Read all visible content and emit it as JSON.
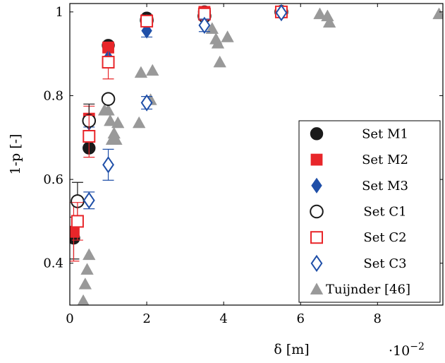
{
  "chart_data": {
    "type": "scatter",
    "xlabel": "δ [m]",
    "ylabel": "1-p [-]",
    "x_exponent_label": "·10",
    "x_exponent_power": "−2",
    "xlim": [
      0,
      9.7
    ],
    "ylim": [
      0.3,
      1.02
    ],
    "x_ticks": [
      0,
      2,
      4,
      6,
      8
    ],
    "x_tick_labels": [
      "0",
      "2",
      "4",
      "6",
      "8"
    ],
    "y_ticks": [
      0.4,
      0.6,
      0.8,
      1.0
    ],
    "y_tick_labels": [
      "0.4",
      "0.6",
      "0.8",
      "1"
    ],
    "grid": false,
    "legend_position": "bottom-right",
    "series": [
      {
        "name": "Set M1",
        "marker": "circle",
        "filled": true,
        "color": "#1a1a1a",
        "points": [
          {
            "x": 0.1,
            "y": 0.46,
            "err": 0.05
          },
          {
            "x": 0.5,
            "y": 0.675,
            "err": 0
          },
          {
            "x": 1.0,
            "y": 0.92,
            "err": 0
          },
          {
            "x": 2.0,
            "y": 0.985,
            "err": 0
          },
          {
            "x": 3.5,
            "y": 1.0,
            "err": 0
          },
          {
            "x": 5.5,
            "y": 1.0,
            "err": 0
          }
        ]
      },
      {
        "name": "Set M2",
        "marker": "square",
        "filled": true,
        "color": "#e8262a",
        "points": [
          {
            "x": 0.1,
            "y": 0.475,
            "err": 0.07
          },
          {
            "x": 0.5,
            "y": 0.745,
            "err": 0.03
          },
          {
            "x": 1.0,
            "y": 0.915,
            "err": 0
          },
          {
            "x": 2.0,
            "y": 0.98,
            "err": 0
          },
          {
            "x": 3.5,
            "y": 1.0,
            "err": 0
          },
          {
            "x": 5.5,
            "y": 1.0,
            "err": 0
          }
        ]
      },
      {
        "name": "Set M3",
        "marker": "diamond",
        "filled": true,
        "color": "#1f4fa8",
        "points": [
          {
            "x": 0.5,
            "y": 0.735,
            "err": 0.01
          },
          {
            "x": 1.0,
            "y": 0.89,
            "err": 0
          },
          {
            "x": 2.0,
            "y": 0.955,
            "err": 0.015
          },
          {
            "x": 3.5,
            "y": 0.985,
            "err": 0
          },
          {
            "x": 5.5,
            "y": 1.0,
            "err": 0
          }
        ]
      },
      {
        "name": "Set C1",
        "marker": "circle",
        "filled": false,
        "color": "#1a1a1a",
        "points": [
          {
            "x": 0.2,
            "y": 0.548,
            "err": 0.045
          },
          {
            "x": 0.5,
            "y": 0.74,
            "err": 0.04
          },
          {
            "x": 1.0,
            "y": 0.792,
            "err": 0
          },
          {
            "x": 2.0,
            "y": 0.98,
            "err": 0
          },
          {
            "x": 3.5,
            "y": 0.99,
            "err": 0
          },
          {
            "x": 5.5,
            "y": 1.0,
            "err": 0
          }
        ]
      },
      {
        "name": "Set C2",
        "marker": "square",
        "filled": false,
        "color": "#e8262a",
        "points": [
          {
            "x": 0.2,
            "y": 0.5,
            "err": 0.045
          },
          {
            "x": 0.5,
            "y": 0.703,
            "err": 0.05
          },
          {
            "x": 1.0,
            "y": 0.88,
            "err": 0.04
          },
          {
            "x": 2.0,
            "y": 0.978,
            "err": 0
          },
          {
            "x": 3.5,
            "y": 0.995,
            "err": 0
          },
          {
            "x": 5.5,
            "y": 1.0,
            "err": 0
          }
        ]
      },
      {
        "name": "Set C3",
        "marker": "diamond",
        "filled": false,
        "color": "#1f4fa8",
        "points": [
          {
            "x": 0.5,
            "y": 0.55,
            "err": 0.02
          },
          {
            "x": 1.0,
            "y": 0.635,
            "err": 0.037
          },
          {
            "x": 2.0,
            "y": 0.783,
            "err": 0.015
          },
          {
            "x": 3.5,
            "y": 0.968,
            "err": 0.015
          },
          {
            "x": 5.5,
            "y": 0.998,
            "err": 0
          }
        ]
      },
      {
        "name": "Tuijnder [46]",
        "marker": "triangle",
        "filled": true,
        "color": "#999999",
        "points": [
          {
            "x": 0.35,
            "y": 0.31,
            "err": 0
          },
          {
            "x": 0.4,
            "y": 0.35,
            "err": 0
          },
          {
            "x": 0.45,
            "y": 0.385,
            "err": 0
          },
          {
            "x": 0.5,
            "y": 0.42,
            "err": 0
          },
          {
            "x": 0.9,
            "y": 0.765,
            "err": 0
          },
          {
            "x": 1.0,
            "y": 0.765,
            "err": 0
          },
          {
            "x": 1.05,
            "y": 0.74,
            "err": 0
          },
          {
            "x": 1.1,
            "y": 0.695,
            "err": 0
          },
          {
            "x": 1.15,
            "y": 0.71,
            "err": 0
          },
          {
            "x": 1.2,
            "y": 0.695,
            "err": 0
          },
          {
            "x": 1.25,
            "y": 0.735,
            "err": 0
          },
          {
            "x": 1.8,
            "y": 0.735,
            "err": 0
          },
          {
            "x": 1.85,
            "y": 0.855,
            "err": 0
          },
          {
            "x": 2.15,
            "y": 0.86,
            "err": 0
          },
          {
            "x": 2.1,
            "y": 0.79,
            "err": 0
          },
          {
            "x": 3.7,
            "y": 0.96,
            "err": 0
          },
          {
            "x": 3.8,
            "y": 0.935,
            "err": 0
          },
          {
            "x": 3.85,
            "y": 0.925,
            "err": 0
          },
          {
            "x": 3.9,
            "y": 0.88,
            "err": 0
          },
          {
            "x": 4.1,
            "y": 0.94,
            "err": 0
          },
          {
            "x": 6.5,
            "y": 0.995,
            "err": 0
          },
          {
            "x": 6.7,
            "y": 0.99,
            "err": 0
          },
          {
            "x": 6.75,
            "y": 0.975,
            "err": 0
          },
          {
            "x": 9.6,
            "y": 0.995,
            "err": 0
          }
        ]
      }
    ]
  }
}
